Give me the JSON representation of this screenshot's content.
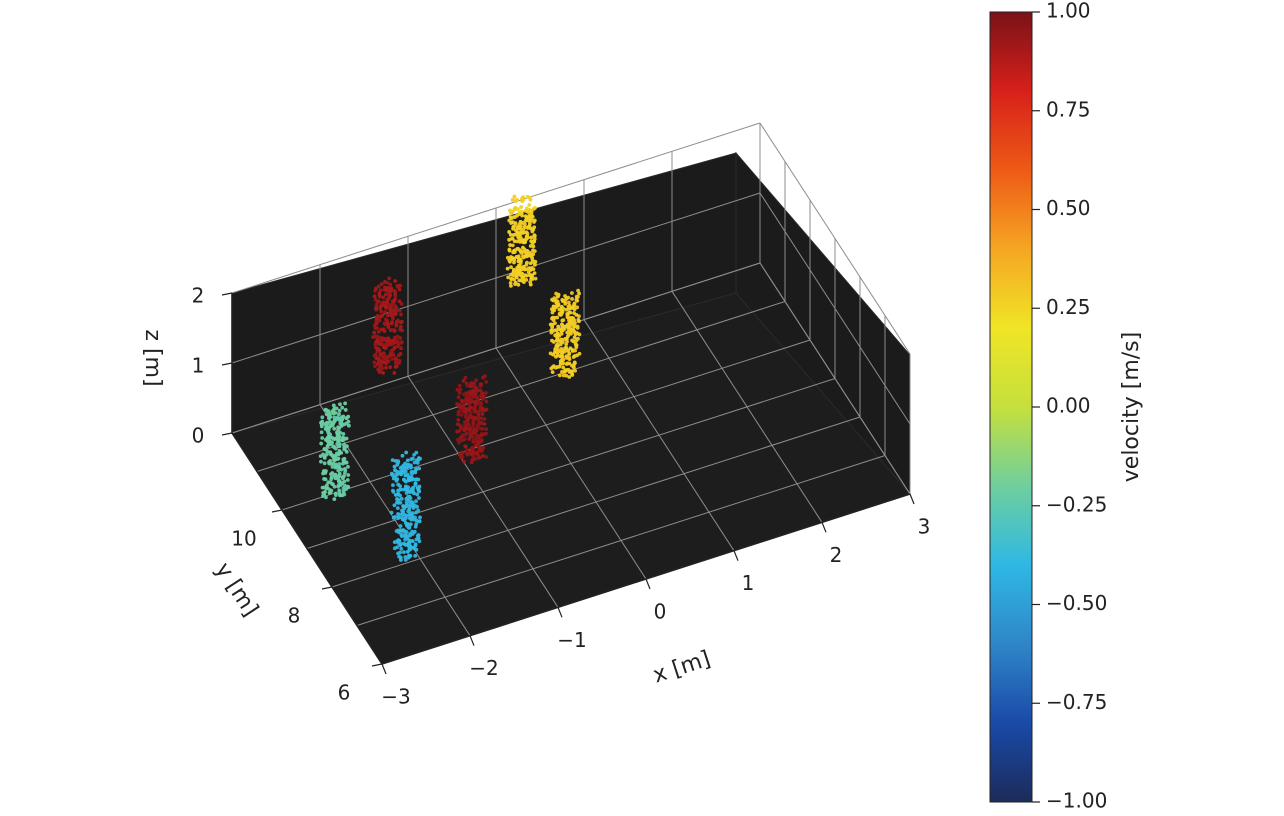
{
  "chart_data": {
    "type": "scatter",
    "projection": "3d",
    "background": "#1b1b1b",
    "grid": true,
    "axes": {
      "x": {
        "label": "x [m]",
        "ticks": [
          -3,
          -2,
          -1,
          0,
          1,
          2,
          3
        ],
        "tick_labels": [
          "−3",
          "−2",
          "−1",
          "0",
          "1",
          "2",
          "3"
        ],
        "range": [
          -3,
          3
        ]
      },
      "y": {
        "label": "y [m]",
        "ticks": [
          6,
          8,
          10
        ],
        "tick_labels": [
          "6",
          "8",
          "10"
        ],
        "range": [
          6,
          12
        ]
      },
      "z": {
        "label": "z [m]",
        "ticks": [
          0,
          1,
          2
        ],
        "tick_labels": [
          "0",
          "1",
          "2"
        ],
        "range": [
          0,
          2
        ]
      }
    },
    "clusters": [
      {
        "x": -2.1,
        "y": 8.2,
        "z_range": [
          0.0,
          1.4
        ],
        "velocity": -0.4
      },
      {
        "x": -2.4,
        "y": 10.0,
        "z_range": [
          0.0,
          1.2
        ],
        "velocity": -0.22
      },
      {
        "x": -0.9,
        "y": 9.8,
        "z_range": [
          0.0,
          1.1
        ],
        "velocity": 0.95
      },
      {
        "x": -1.4,
        "y": 11.4,
        "z_range": [
          0.6,
          1.8
        ],
        "velocity": 0.92
      },
      {
        "x": 0.5,
        "y": 11.0,
        "z_range": [
          0.0,
          1.1
        ],
        "velocity": 0.28
      },
      {
        "x": 0.3,
        "y": 12.0,
        "z_range": [
          0.8,
          2.0
        ],
        "velocity": 0.27
      }
    ],
    "colorbar": {
      "label": "velocity [m/s]",
      "range": [
        -1.0,
        1.0
      ],
      "ticks": [
        1.0,
        0.75,
        0.5,
        0.25,
        0.0,
        -0.25,
        -0.5,
        -0.75,
        -1.0
      ],
      "tick_labels": [
        "1.00",
        "0.75",
        "0.50",
        "0.25",
        "0.00",
        "−0.25",
        "−0.50",
        "−0.75",
        "−1.00"
      ],
      "colormap": [
        "#1c2b5a",
        "#1a4aa8",
        "#2f86c8",
        "#2fb8e4",
        "#6fcf9e",
        "#c5e03c",
        "#f0e526",
        "#f5a623",
        "#ee5a16",
        "#d7201a",
        "#7a1218"
      ]
    }
  }
}
